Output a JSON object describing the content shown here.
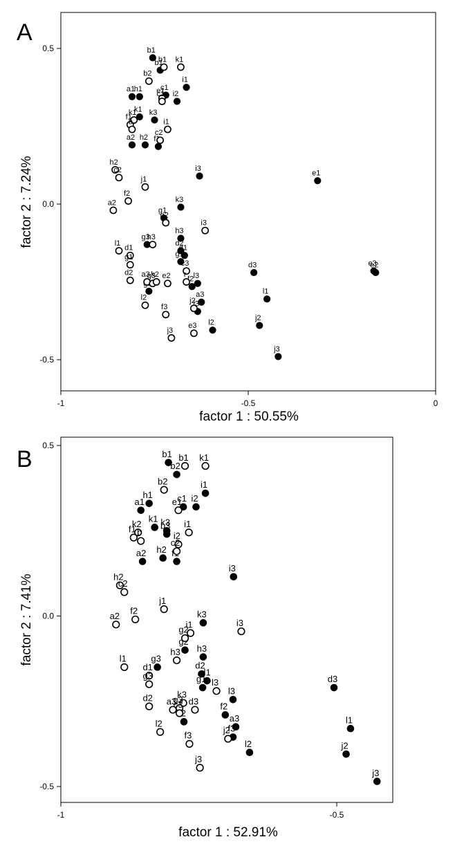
{
  "chart_data": [
    {
      "type": "scatter",
      "panel": "A",
      "xlabel": "factor 1 : 50.55%",
      "ylabel": "factor 2 : 7.24%",
      "xlim": [
        -1,
        0
      ],
      "ylim": [
        -0.6,
        0.6
      ],
      "xticks": [
        {
          "v": -1,
          "t": "-1"
        },
        {
          "v": -0.5,
          "t": "-0.5"
        },
        {
          "v": 0,
          "t": "0"
        }
      ],
      "yticks": [
        {
          "v": 0.5,
          "t": "0.5"
        },
        {
          "v": 0.0,
          "t": "0.0"
        },
        {
          "v": -0.5,
          "t": "-0.5"
        }
      ],
      "series": [
        {
          "marker": "filled",
          "points": [
            {
              "label": "b1",
              "x": -0.755,
              "y": 0.47
            },
            {
              "label": "b1",
              "x": -0.735,
              "y": 0.43
            },
            {
              "label": "i1",
              "x": -0.665,
              "y": 0.375
            },
            {
              "label": "a1",
              "x": -0.81,
              "y": 0.345
            },
            {
              "label": "h1",
              "x": -0.79,
              "y": 0.345
            },
            {
              "label": "c1",
              "x": -0.72,
              "y": 0.35
            },
            {
              "label": "i2",
              "x": -0.69,
              "y": 0.33
            },
            {
              "label": "k1",
              "x": -0.79,
              "y": 0.28
            },
            {
              "label": "k3",
              "x": -0.75,
              "y": 0.27
            },
            {
              "label": "a2",
              "x": -0.81,
              "y": 0.19
            },
            {
              "label": "h2",
              "x": -0.775,
              "y": 0.19
            },
            {
              "label": "f1",
              "x": -0.74,
              "y": 0.185
            },
            {
              "label": "i3",
              "x": -0.63,
              "y": 0.09
            },
            {
              "label": "e1",
              "x": -0.315,
              "y": 0.075
            },
            {
              "label": "k3",
              "x": -0.68,
              "y": -0.01
            },
            {
              "label": "g1",
              "x": -0.725,
              "y": -0.045
            },
            {
              "label": "h3",
              "x": -0.68,
              "y": -0.11
            },
            {
              "label": "g3",
              "x": -0.77,
              "y": -0.13
            },
            {
              "label": "d2",
              "x": -0.68,
              "y": -0.15
            },
            {
              "label": "d1",
              "x": -0.67,
              "y": -0.165
            },
            {
              "label": "g1",
              "x": -0.68,
              "y": -0.185
            },
            {
              "label": "d3",
              "x": -0.485,
              "y": -0.22
            },
            {
              "label": "e3",
              "x": -0.165,
              "y": -0.215
            },
            {
              "label": "e2",
              "x": -0.16,
              "y": -0.22
            },
            {
              "label": "l3",
              "x": -0.635,
              "y": -0.255
            },
            {
              "label": "f2",
              "x": -0.65,
              "y": -0.265
            },
            {
              "label": "g3",
              "x": -0.765,
              "y": -0.28
            },
            {
              "label": "l1",
              "x": -0.45,
              "y": -0.305
            },
            {
              "label": "a3",
              "x": -0.625,
              "y": -0.315
            },
            {
              "label": "l3",
              "x": -0.635,
              "y": -0.345
            },
            {
              "label": "l2",
              "x": -0.595,
              "y": -0.405
            },
            {
              "label": "j2",
              "x": -0.47,
              "y": -0.39
            },
            {
              "label": "j3",
              "x": -0.42,
              "y": -0.49
            }
          ]
        },
        {
          "marker": "open",
          "points": [
            {
              "label": "k1",
              "x": -0.68,
              "y": 0.44
            },
            {
              "label": "b1",
              "x": -0.725,
              "y": 0.44
            },
            {
              "label": "b2",
              "x": -0.765,
              "y": 0.395
            },
            {
              "label": "e1",
              "x": -0.73,
              "y": 0.34
            },
            {
              "label": "c1",
              "x": -0.73,
              "y": 0.33
            },
            {
              "label": "f1",
              "x": -0.815,
              "y": 0.255
            },
            {
              "label": "k1",
              "x": -0.805,
              "y": 0.27
            },
            {
              "label": "b",
              "x": -0.81,
              "y": 0.24
            },
            {
              "label": "i1",
              "x": -0.715,
              "y": 0.24
            },
            {
              "label": "c2",
              "x": -0.735,
              "y": 0.205
            },
            {
              "label": "h2",
              "x": -0.855,
              "y": 0.11
            },
            {
              "label": "c2",
              "x": -0.845,
              "y": 0.085
            },
            {
              "label": "j1",
              "x": -0.775,
              "y": 0.055
            },
            {
              "label": "f2",
              "x": -0.82,
              "y": 0.01
            },
            {
              "label": "a2",
              "x": -0.86,
              "y": -0.02
            },
            {
              "label": "i3",
              "x": -0.615,
              "y": -0.085
            },
            {
              "label": "g2",
              "x": -0.72,
              "y": -0.06
            },
            {
              "label": "l1",
              "x": -0.845,
              "y": -0.15
            },
            {
              "label": "h3",
              "x": -0.755,
              "y": -0.13
            },
            {
              "label": "d1",
              "x": -0.815,
              "y": -0.165
            },
            {
              "label": "g1",
              "x": -0.815,
              "y": -0.195
            },
            {
              "label": "d2",
              "x": -0.815,
              "y": -0.245
            },
            {
              "label": "a3",
              "x": -0.77,
              "y": -0.25
            },
            {
              "label": "g3",
              "x": -0.755,
              "y": -0.255
            },
            {
              "label": "k2",
              "x": -0.745,
              "y": -0.25
            },
            {
              "label": "e2",
              "x": -0.715,
              "y": -0.255
            },
            {
              "label": "c3",
              "x": -0.665,
              "y": -0.215
            },
            {
              "label": "r",
              "x": -0.665,
              "y": -0.25
            },
            {
              "label": "l2",
              "x": -0.775,
              "y": -0.325
            },
            {
              "label": "f3",
              "x": -0.72,
              "y": -0.355
            },
            {
              "label": "j2",
              "x": -0.645,
              "y": -0.335
            },
            {
              "label": "j3",
              "x": -0.705,
              "y": -0.43
            },
            {
              "label": "e3",
              "x": -0.645,
              "y": -0.415
            }
          ]
        }
      ]
    },
    {
      "type": "scatter",
      "panel": "B",
      "xlabel": "factor 1 : 52.91%",
      "ylabel": "factor 2 : 7.41%",
      "xlim": [
        -1,
        -0.4
      ],
      "ylim": [
        -0.55,
        0.52
      ],
      "xticks": [
        {
          "v": -1,
          "t": "-1"
        },
        {
          "v": -0.5,
          "t": "-0.5"
        }
      ],
      "yticks": [
        {
          "v": 0.5,
          "t": "0.5"
        },
        {
          "v": 0.0,
          "t": "0.0"
        },
        {
          "v": -0.5,
          "t": "-0.5"
        }
      ],
      "series": [
        {
          "marker": "filled",
          "points": [
            {
              "label": "b1",
              "x": -0.805,
              "y": 0.45
            },
            {
              "label": "b2",
              "x": -0.79,
              "y": 0.415
            },
            {
              "label": "i1",
              "x": -0.738,
              "y": 0.36
            },
            {
              "label": "a1",
              "x": -0.855,
              "y": 0.31
            },
            {
              "label": "h1",
              "x": -0.84,
              "y": 0.33
            },
            {
              "label": "c1",
              "x": -0.778,
              "y": 0.32
            },
            {
              "label": "i2",
              "x": -0.755,
              "y": 0.32
            },
            {
              "label": "k1",
              "x": -0.83,
              "y": 0.26
            },
            {
              "label": "k3",
              "x": -0.808,
              "y": 0.25
            },
            {
              "label": "b3",
              "x": -0.808,
              "y": 0.24
            },
            {
              "label": "a2",
              "x": -0.852,
              "y": 0.16
            },
            {
              "label": "h2",
              "x": -0.815,
              "y": 0.17
            },
            {
              "label": "f1",
              "x": -0.79,
              "y": 0.16
            },
            {
              "label": "i3",
              "x": -0.687,
              "y": 0.115
            },
            {
              "label": "k3",
              "x": -0.742,
              "y": -0.02
            },
            {
              "label": "g2",
              "x": -0.775,
              "y": -0.1
            },
            {
              "label": "g3",
              "x": -0.825,
              "y": -0.15
            },
            {
              "label": "h3",
              "x": -0.742,
              "y": -0.12
            },
            {
              "label": "d2",
              "x": -0.745,
              "y": -0.17
            },
            {
              "label": "d1",
              "x": -0.735,
              "y": -0.19
            },
            {
              "label": "g1",
              "x": -0.743,
              "y": -0.21
            },
            {
              "label": "l3",
              "x": -0.688,
              "y": -0.245
            },
            {
              "label": "f2",
              "x": -0.702,
              "y": -0.29
            },
            {
              "label": "a3",
              "x": -0.683,
              "y": -0.325
            },
            {
              "label": "f3",
              "x": -0.688,
              "y": -0.355
            },
            {
              "label": "l2",
              "x": -0.777,
              "y": -0.31
            },
            {
              "label": "l2",
              "x": -0.658,
              "y": -0.4
            },
            {
              "label": "d3",
              "x": -0.505,
              "y": -0.21
            },
            {
              "label": "l1",
              "x": -0.475,
              "y": -0.33
            },
            {
              "label": "j2",
              "x": -0.483,
              "y": -0.405
            },
            {
              "label": "j3",
              "x": -0.427,
              "y": -0.485
            }
          ]
        },
        {
          "marker": "open",
          "points": [
            {
              "label": "b1",
              "x": -0.775,
              "y": 0.44
            },
            {
              "label": "k1",
              "x": -0.738,
              "y": 0.44
            },
            {
              "label": "b2",
              "x": -0.813,
              "y": 0.37
            },
            {
              "label": "e1",
              "x": -0.787,
              "y": 0.31
            },
            {
              "label": "f1",
              "x": -0.868,
              "y": 0.23
            },
            {
              "label": "k2",
              "x": -0.86,
              "y": 0.245
            },
            {
              "label": "b",
              "x": -0.855,
              "y": 0.22
            },
            {
              "label": "i1",
              "x": -0.768,
              "y": 0.245
            },
            {
              "label": "i2",
              "x": -0.787,
              "y": 0.21
            },
            {
              "label": "c2",
              "x": -0.79,
              "y": 0.19
            },
            {
              "label": "h2",
              "x": -0.893,
              "y": 0.09
            },
            {
              "label": "c2",
              "x": -0.885,
              "y": 0.07
            },
            {
              "label": "j1",
              "x": -0.813,
              "y": 0.02
            },
            {
              "label": "f2",
              "x": -0.865,
              "y": -0.01
            },
            {
              "label": "a2",
              "x": -0.9,
              "y": -0.025
            },
            {
              "label": "i3",
              "x": -0.673,
              "y": -0.045
            },
            {
              "label": "i1",
              "x": -0.765,
              "y": -0.05
            },
            {
              "label": "g2",
              "x": -0.775,
              "y": -0.065
            },
            {
              "label": "l1",
              "x": -0.885,
              "y": -0.15
            },
            {
              "label": "d1",
              "x": -0.84,
              "y": -0.175
            },
            {
              "label": "g3",
              "x": -0.84,
              "y": -0.2
            },
            {
              "label": "h3",
              "x": -0.79,
              "y": -0.13
            },
            {
              "label": "l3",
              "x": -0.718,
              "y": -0.22
            },
            {
              "label": "d2",
              "x": -0.84,
              "y": -0.265
            },
            {
              "label": "k3",
              "x": -0.778,
              "y": -0.255
            },
            {
              "label": "g3",
              "x": -0.785,
              "y": -0.27
            },
            {
              "label": "a3",
              "x": -0.797,
              "y": -0.275
            },
            {
              "label": "c3",
              "x": -0.785,
              "y": -0.285
            },
            {
              "label": "d3",
              "x": -0.757,
              "y": -0.275
            },
            {
              "label": "l2",
              "x": -0.82,
              "y": -0.34
            },
            {
              "label": "f3",
              "x": -0.767,
              "y": -0.375
            },
            {
              "label": "j2",
              "x": -0.697,
              "y": -0.36
            },
            {
              "label": "j3",
              "x": -0.748,
              "y": -0.445
            }
          ]
        }
      ]
    }
  ]
}
